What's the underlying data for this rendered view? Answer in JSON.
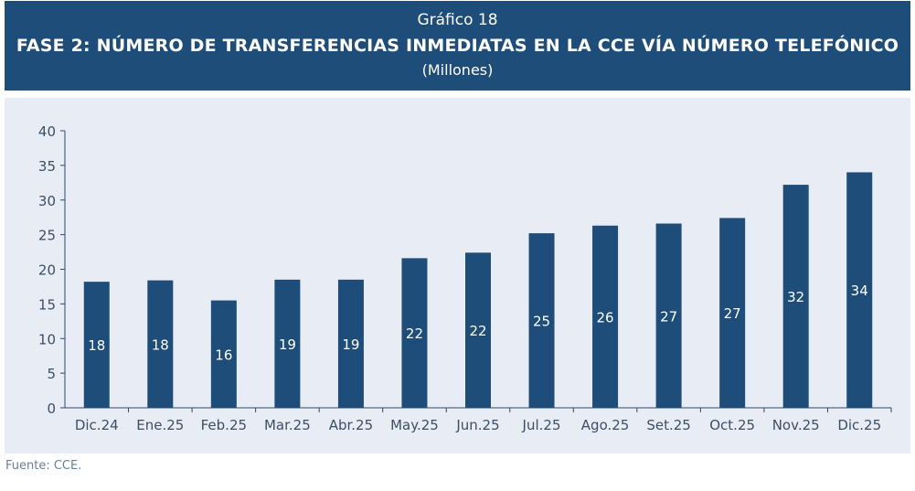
{
  "header": {
    "kicker": "Gráfico 18",
    "title": "FASE 2: NÚMERO DE TRANSFERENCIAS INMEDIATAS EN LA CCE VÍA NÚMERO TELEFÓNICO",
    "subtitle": "(Millones)"
  },
  "source": "Fuente: CCE.",
  "colors": {
    "header_bg": "#1f4d7a",
    "plot_bg": "#e8ecf4",
    "bar": "#1f4d7a",
    "bar_label": "#ffffff",
    "axis": "#2c4a6b"
  },
  "chart_data": {
    "type": "bar",
    "title": "FASE 2: NÚMERO DE TRANSFERENCIAS INMEDIATAS EN LA CCE VÍA NÚMERO TELEFÓNICO",
    "subtitle": "(Millones)",
    "categories": [
      "Dic.24",
      "Ene.25",
      "Feb.25",
      "Mar.25",
      "Abr.25",
      "May.25",
      "Jun.25",
      "Jul.25",
      "Ago.25",
      "Set.25",
      "Oct.25",
      "Nov.25",
      "Dic.25"
    ],
    "values": [
      18.2,
      18.4,
      15.5,
      18.5,
      18.5,
      21.6,
      22.4,
      25.2,
      26.3,
      26.6,
      27.4,
      32.2,
      34.0
    ],
    "data_labels": [
      "18",
      "18",
      "16",
      "19",
      "19",
      "22",
      "22",
      "25",
      "26",
      "27",
      "27",
      "32",
      "34"
    ],
    "xlabel": "",
    "ylabel": "",
    "ylim": [
      0,
      40
    ],
    "yticks": [
      0,
      5,
      10,
      15,
      20,
      25,
      30,
      35,
      40
    ],
    "grid": false,
    "legend": "none"
  }
}
